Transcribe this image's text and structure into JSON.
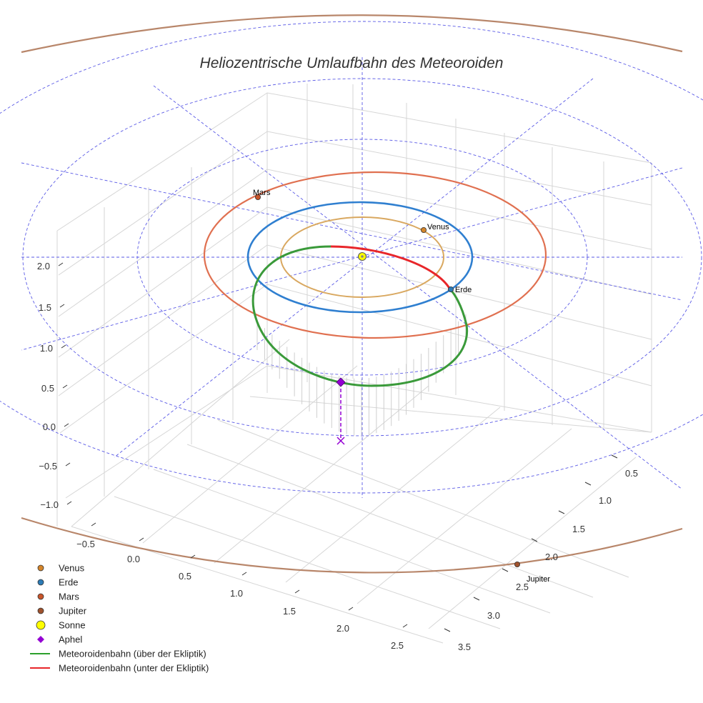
{
  "chart_data": {
    "type": "3d-orbit-plot",
    "title": "Heliozentrische Umlaufbahn des Meteoroiden",
    "axes": {
      "z_ticks": [
        "2.0",
        "1.5",
        "1.0",
        "0.5",
        "0.0",
        "−0.5",
        "−1.0"
      ],
      "x_ticks": [
        "−0.5",
        "0.0",
        "0.5",
        "1.0",
        "1.5",
        "2.0",
        "2.5"
      ],
      "y_ticks": [
        "0.5",
        "1.0",
        "1.5",
        "2.0",
        "2.5",
        "3.0",
        "3.5"
      ]
    },
    "orbits": [
      {
        "name": "Venus",
        "semi_major_au": 0.72
      },
      {
        "name": "Erde",
        "semi_major_au": 1.0
      },
      {
        "name": "Mars",
        "semi_major_au": 1.52
      },
      {
        "name": "Jupiter",
        "semi_major_au": 5.2
      }
    ],
    "planet_labels": {
      "venus": "Venus",
      "erde": "Erde",
      "mars": "Mars",
      "jupiter": "Jupiter"
    },
    "meteoroid": {
      "segments": [
        "über der Ekliptik",
        "unter der Ekliptik"
      ],
      "aphel_marker": "Aphel"
    },
    "legend": [
      {
        "label": "Venus",
        "marker": "circle",
        "color": "#d4852a"
      },
      {
        "label": "Erde",
        "marker": "circle",
        "color": "#2c7bb6"
      },
      {
        "label": "Mars",
        "marker": "circle",
        "color": "#c8552a"
      },
      {
        "label": "Jupiter",
        "marker": "circle",
        "color": "#a0522d"
      },
      {
        "label": "Sonne",
        "marker": "circle-large",
        "color": "#ffff00"
      },
      {
        "label": "Aphel",
        "marker": "diamond",
        "color": "#9400d3"
      },
      {
        "label": "Meteoroidenbahn (über der Ekliptik)",
        "marker": "line",
        "color": "#2ca02c"
      },
      {
        "label": "Meteoroidenbahn (unter der Ekliptik)",
        "marker": "line",
        "color": "#e8262a"
      }
    ],
    "colors": {
      "venus_orbit": "#d9a860",
      "earth_orbit": "#2f7fd0",
      "mars_orbit": "#e07050",
      "jupiter_orbit": "#b8866a",
      "grid_dashed": "#5a5ae6",
      "meteor_above": "#3a9a3a",
      "meteor_below": "#e8262a",
      "aphel": "#9400d3"
    }
  }
}
